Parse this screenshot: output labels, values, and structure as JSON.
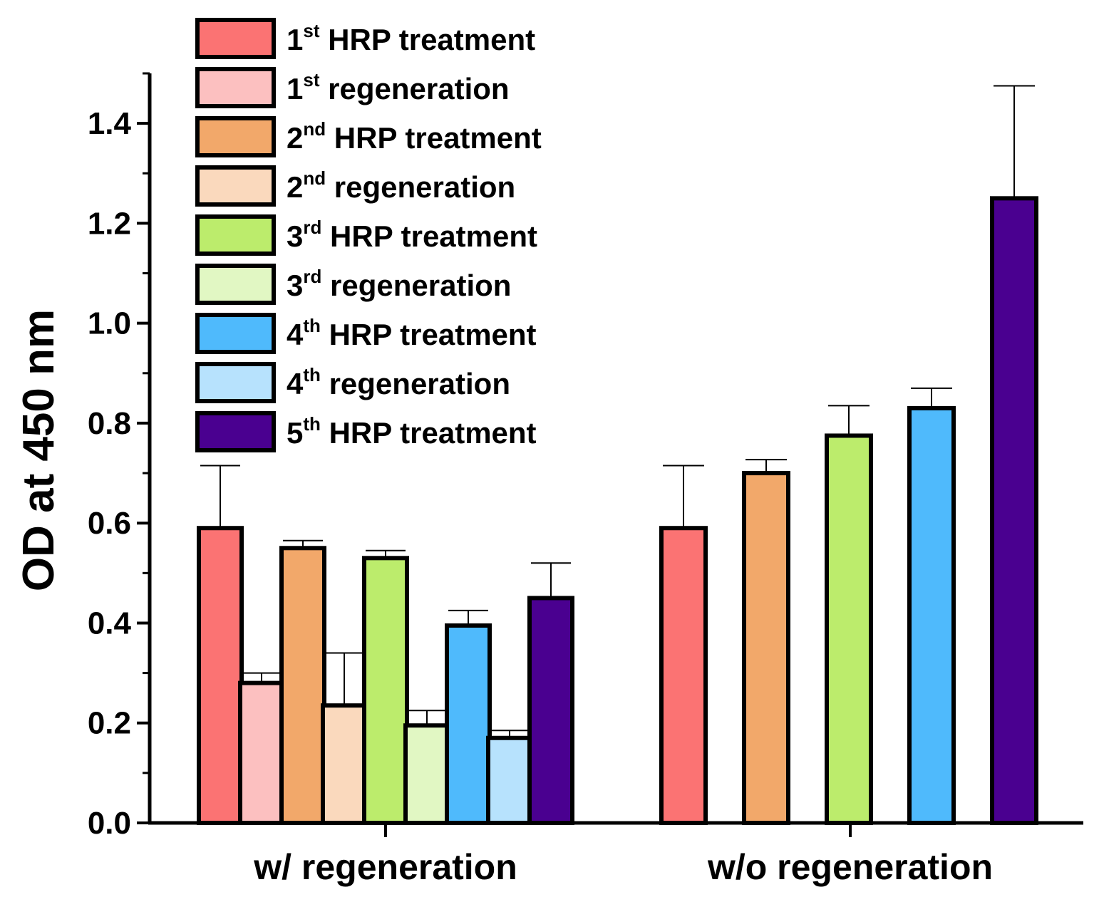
{
  "chart_data": {
    "type": "bar",
    "title": "",
    "xlabel": "",
    "ylabel": "OD at 450 nm",
    "ylim": [
      0,
      1.5
    ],
    "yticks": [
      0.0,
      0.2,
      0.4,
      0.6,
      0.8,
      1.0,
      1.2,
      1.4
    ],
    "ytick_labels": [
      "0.0",
      "0.2",
      "0.4",
      "0.6",
      "0.8",
      "1.0",
      "1.2",
      "1.4"
    ],
    "legend_position": "top-left",
    "series": [
      {
        "key": "t1",
        "num": "1",
        "sup": "st",
        "rest": " HRP treatment",
        "color": "#FB7373"
      },
      {
        "key": "r1",
        "num": "1",
        "sup": "st",
        "rest": " regeneration",
        "color": "#FCC0C0"
      },
      {
        "key": "t2",
        "num": "2",
        "sup": "nd",
        "rest": " HRP treatment",
        "color": "#F2A86A"
      },
      {
        "key": "r2",
        "num": "2",
        "sup": "nd",
        "rest": " regeneration",
        "color": "#FAD9BD"
      },
      {
        "key": "t3",
        "num": "3",
        "sup": "rd",
        "rest": " HRP treatment",
        "color": "#BCEC6C"
      },
      {
        "key": "r3",
        "num": "3",
        "sup": "rd",
        "rest": " regeneration",
        "color": "#E1F7C3"
      },
      {
        "key": "t4",
        "num": "4",
        "sup": "th",
        "rest": " HRP treatment",
        "color": "#4FBAFC"
      },
      {
        "key": "r4",
        "num": "4",
        "sup": "th",
        "rest": " regeneration",
        "color": "#B7E2FD"
      },
      {
        "key": "t5",
        "num": "5",
        "sup": "th",
        "rest": " HRP treatment",
        "color": "#4A0090"
      }
    ],
    "groups": [
      {
        "label": "w/ regeneration",
        "bars": [
          {
            "series": "t1",
            "value": 0.59,
            "error": 0.125
          },
          {
            "series": "r1",
            "value": 0.28,
            "error": 0.02
          },
          {
            "series": "t2",
            "value": 0.55,
            "error": 0.015
          },
          {
            "series": "r2",
            "value": 0.235,
            "error": 0.105
          },
          {
            "series": "t3",
            "value": 0.53,
            "error": 0.015
          },
          {
            "series": "r3",
            "value": 0.195,
            "error": 0.03
          },
          {
            "series": "t4",
            "value": 0.395,
            "error": 0.03
          },
          {
            "series": "r4",
            "value": 0.17,
            "error": 0.015
          },
          {
            "series": "t5",
            "value": 0.45,
            "error": 0.07
          }
        ]
      },
      {
        "label": "w/o regeneration",
        "bars": [
          {
            "series": "t1",
            "value": 0.59,
            "error": 0.125
          },
          {
            "series": "t2",
            "value": 0.7,
            "error": 0.027
          },
          {
            "series": "t3",
            "value": 0.775,
            "error": 0.06
          },
          {
            "series": "t4",
            "value": 0.83,
            "error": 0.04
          },
          {
            "series": "t5",
            "value": 1.25,
            "error": 0.225
          }
        ]
      }
    ]
  }
}
